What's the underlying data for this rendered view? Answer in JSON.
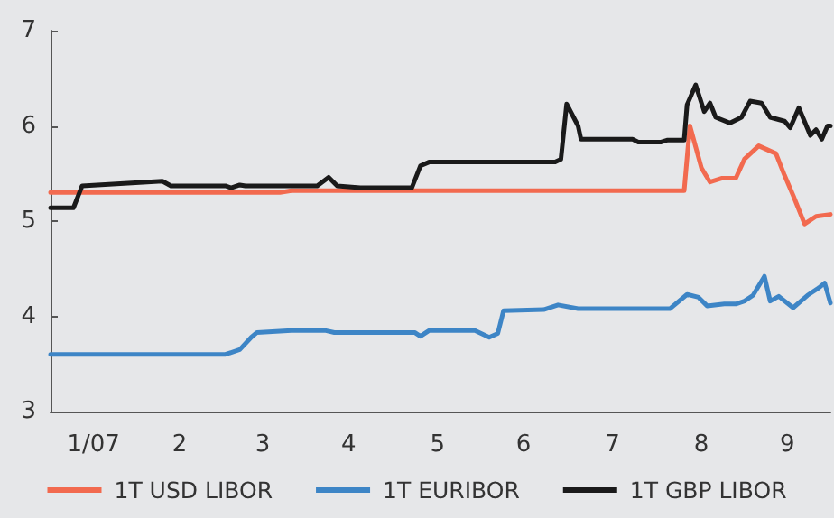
{
  "chart_data": {
    "type": "line",
    "xlim": [
      "2007-01-01",
      "2007-09-30"
    ],
    "xticks": [
      {
        "value": "2007-01-16",
        "label": "1/07"
      },
      {
        "value": "2007-02-15",
        "label": "2"
      },
      {
        "value": "2007-03-16",
        "label": "3"
      },
      {
        "value": "2007-04-15",
        "label": "4"
      },
      {
        "value": "2007-05-16",
        "label": "5"
      },
      {
        "value": "2007-06-15",
        "label": "6"
      },
      {
        "value": "2007-07-16",
        "label": "7"
      },
      {
        "value": "2007-08-16",
        "label": "8"
      },
      {
        "value": "2007-09-15",
        "label": "9"
      }
    ],
    "ylim": [
      3,
      7
    ],
    "yticks": [
      3,
      4,
      5,
      6,
      7
    ],
    "grid": false,
    "legend": "bottom",
    "marker": "none",
    "line_style": "solid",
    "series": [
      {
        "name": "1T USD LIBOR",
        "color": "#f26a4f",
        "x": [
          "2007-01-01",
          "2007-03-22",
          "2007-03-26",
          "2007-08-10",
          "2007-08-12",
          "2007-08-16",
          "2007-08-19",
          "2007-08-23",
          "2007-08-28",
          "2007-08-31",
          "2007-09-05",
          "2007-09-11",
          "2007-09-14",
          "2007-09-17",
          "2007-09-21",
          "2007-09-25",
          "2007-09-30"
        ],
        "values": [
          5.3,
          5.3,
          5.32,
          5.32,
          6.0,
          5.56,
          5.41,
          5.45,
          5.45,
          5.65,
          5.79,
          5.71,
          5.48,
          5.27,
          4.97,
          5.05,
          5.07
        ]
      },
      {
        "name": "1T EURIBOR",
        "color": "#3d85c6",
        "x": [
          "2007-01-01",
          "2007-03-03",
          "2007-03-08",
          "2007-03-12",
          "2007-03-14",
          "2007-03-26",
          "2007-04-07",
          "2007-04-10",
          "2007-05-04",
          "2007-05-08",
          "2007-05-10",
          "2007-05-13",
          "2007-05-29",
          "2007-06-03",
          "2007-06-06",
          "2007-06-08",
          "2007-06-22",
          "2007-06-27",
          "2007-07-04",
          "2007-08-02",
          "2007-08-05",
          "2007-08-11",
          "2007-08-15",
          "2007-08-18",
          "2007-08-24",
          "2007-08-28",
          "2007-08-31",
          "2007-09-03",
          "2007-09-07",
          "2007-09-09",
          "2007-09-12",
          "2007-09-17",
          "2007-09-22",
          "2007-09-26",
          "2007-09-28",
          "2007-09-30"
        ],
        "values": [
          3.6,
          3.6,
          3.65,
          3.78,
          3.83,
          3.85,
          3.85,
          3.83,
          3.83,
          3.83,
          3.79,
          3.85,
          3.85,
          3.78,
          3.82,
          4.06,
          4.07,
          4.12,
          4.08,
          4.08,
          4.08,
          4.23,
          4.2,
          4.11,
          4.13,
          4.13,
          4.16,
          4.22,
          4.42,
          4.16,
          4.21,
          4.09,
          4.22,
          4.3,
          4.35,
          4.14
        ]
      },
      {
        "name": "1T GBP LIBOR",
        "color": "#1a1a1a",
        "x": [
          "2007-01-01",
          "2007-01-09",
          "2007-01-12",
          "2007-02-09",
          "2007-02-12",
          "2007-03-03",
          "2007-03-05",
          "2007-03-08",
          "2007-03-10",
          "2007-04-04",
          "2007-04-08",
          "2007-04-11",
          "2007-04-19",
          "2007-05-07",
          "2007-05-10",
          "2007-05-13",
          "2007-06-26",
          "2007-06-28",
          "2007-06-30",
          "2007-07-04",
          "2007-07-05",
          "2007-07-23",
          "2007-07-25",
          "2007-08-02",
          "2007-08-04",
          "2007-08-10",
          "2007-08-11",
          "2007-08-14",
          "2007-08-17",
          "2007-08-19",
          "2007-08-21",
          "2007-08-26",
          "2007-08-30",
          "2007-09-02",
          "2007-09-06",
          "2007-09-09",
          "2007-09-14",
          "2007-09-16",
          "2007-09-19",
          "2007-09-23",
          "2007-09-25",
          "2007-09-27",
          "2007-09-29",
          "2007-09-30"
        ],
        "values": [
          5.14,
          5.14,
          5.37,
          5.42,
          5.37,
          5.37,
          5.35,
          5.38,
          5.37,
          5.37,
          5.46,
          5.37,
          5.35,
          5.35,
          5.58,
          5.62,
          5.62,
          5.65,
          6.23,
          6.0,
          5.86,
          5.86,
          5.83,
          5.83,
          5.85,
          5.85,
          6.22,
          6.43,
          6.15,
          6.24,
          6.09,
          6.03,
          6.09,
          6.26,
          6.24,
          6.09,
          6.05,
          5.98,
          6.19,
          5.9,
          5.96,
          5.86,
          6.0,
          6.0
        ]
      }
    ]
  }
}
